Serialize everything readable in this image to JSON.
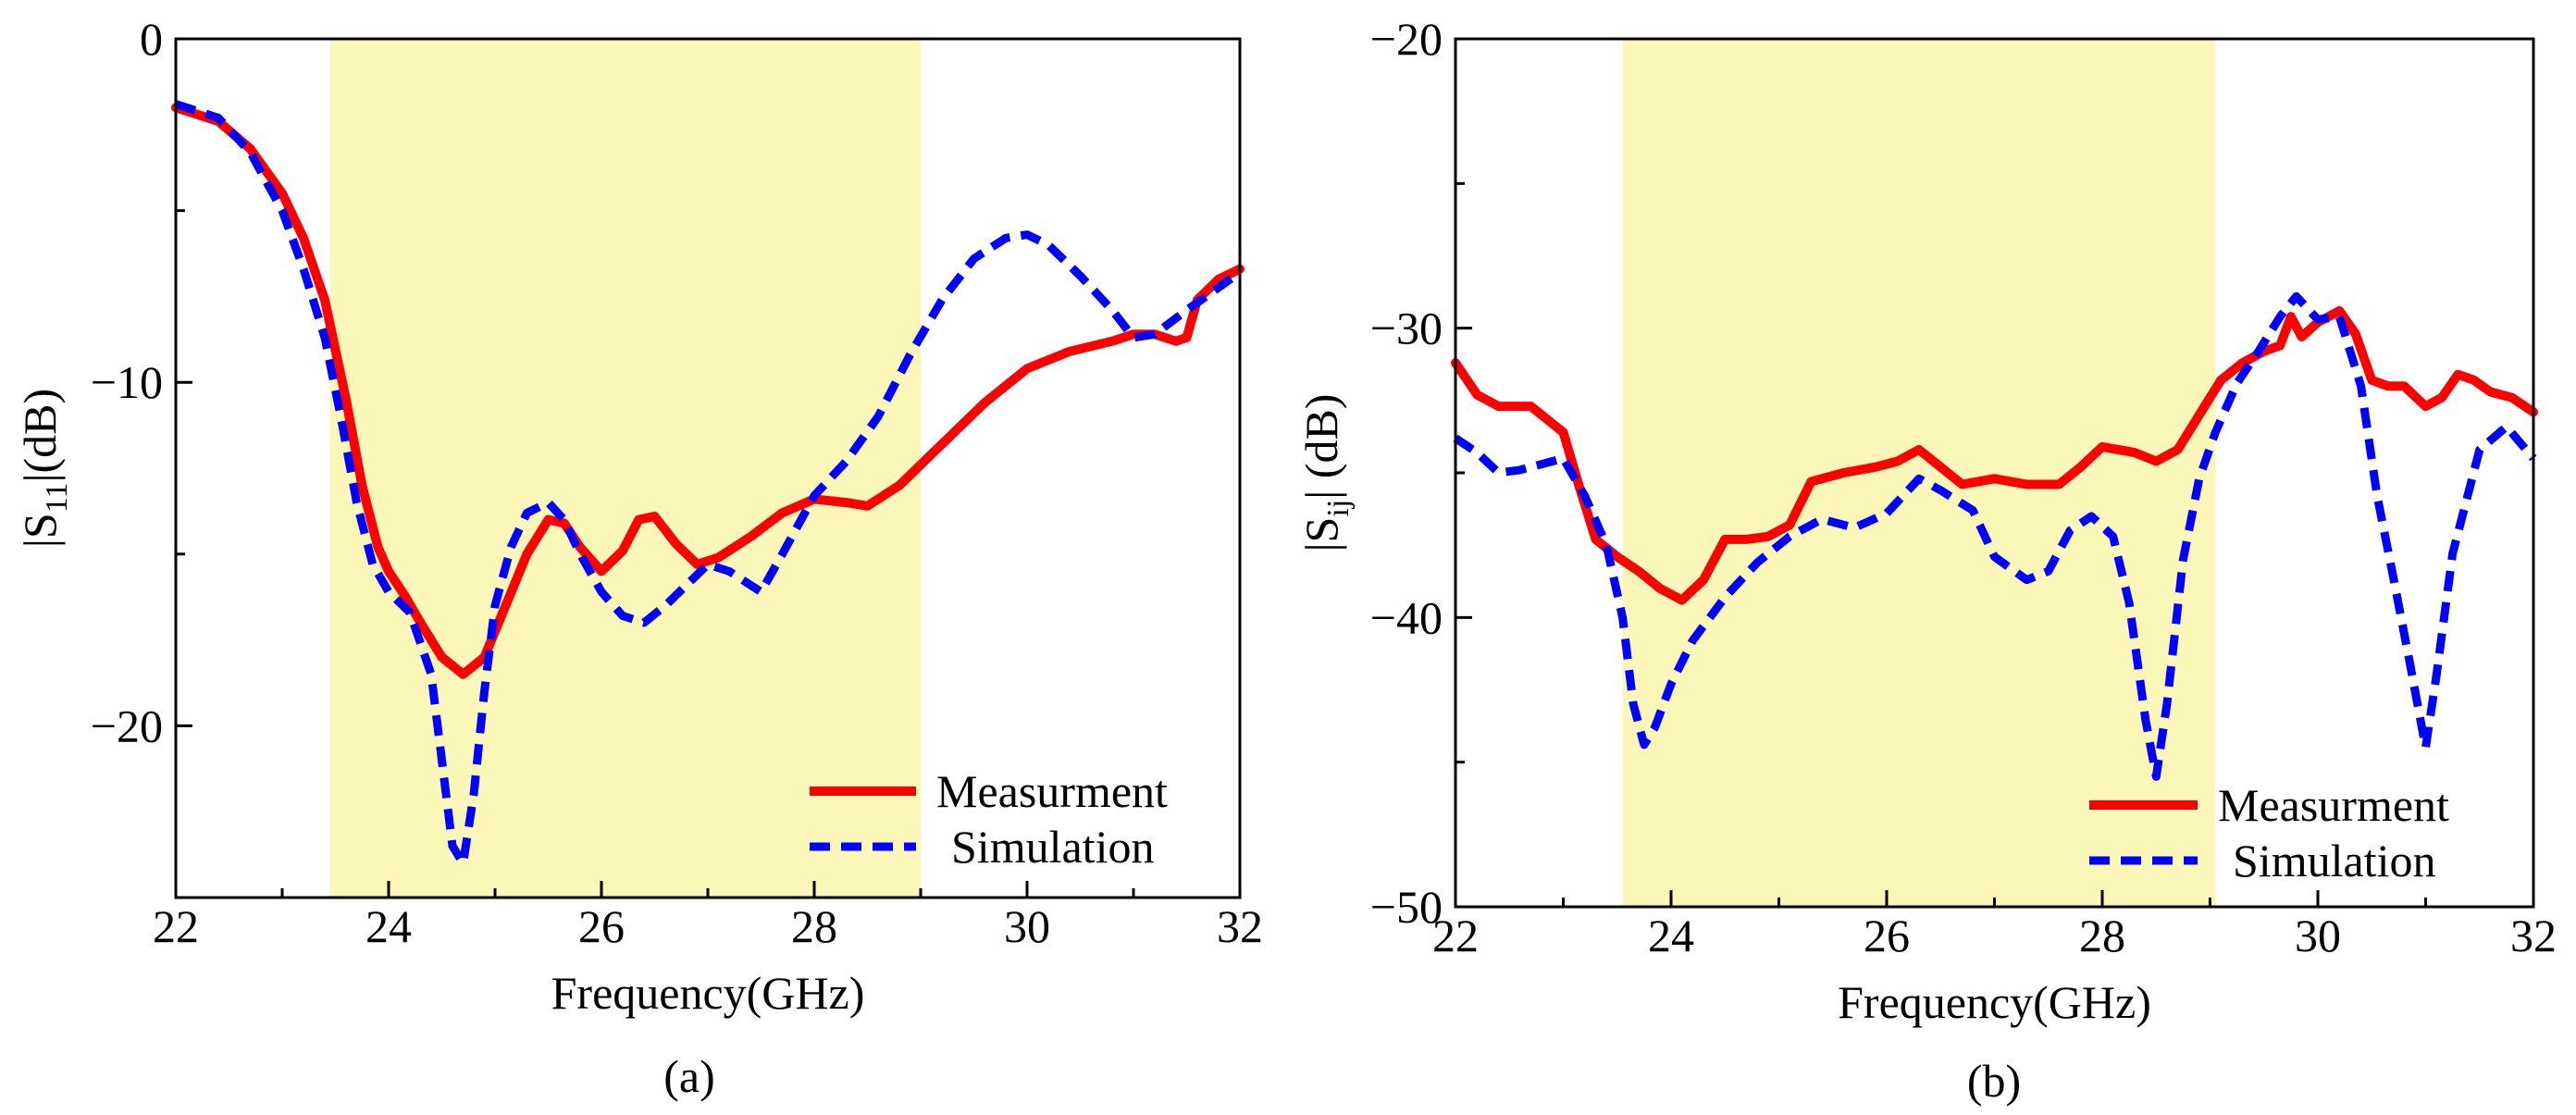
{
  "chart_data": [
    {
      "id": "a",
      "type": "line",
      "caption": "(a)",
      "xlabel": "Frequency(GHz)",
      "ylabel_parts": {
        "base": "|S",
        "sub": "11",
        "tail": "|(dB)"
      },
      "xlim": [
        22,
        32
      ],
      "ylim": [
        -25,
        0
      ],
      "xticks": [
        22,
        24,
        26,
        28,
        30,
        32
      ],
      "xtick_labels": [
        "22",
        "24",
        "26",
        "28",
        "30",
        "32"
      ],
      "yticks": [
        0,
        -10,
        -20
      ],
      "ytick_labels": [
        "0",
        "−10",
        "−20"
      ],
      "band": [
        23.45,
        29.0
      ],
      "band_color": "#fbf7b8",
      "legend_position": "bottom-right",
      "series": [
        {
          "name": "Measurment",
          "color": "#ff0000",
          "style": "solid",
          "x": [
            22,
            22.4,
            22.7,
            23.0,
            23.2,
            23.4,
            23.6,
            23.75,
            23.9,
            24.0,
            24.15,
            24.3,
            24.5,
            24.7,
            24.9,
            25.1,
            25.3,
            25.5,
            25.65,
            25.8,
            26.0,
            26.2,
            26.35,
            26.5,
            26.7,
            26.9,
            27.1,
            27.4,
            27.7,
            28.0,
            28.3,
            28.5,
            28.8,
            29.2,
            29.6,
            30.0,
            30.4,
            30.8,
            31.0,
            31.2,
            31.4,
            31.5,
            31.6,
            31.8,
            32.0
          ],
          "y": [
            -2.0,
            -2.4,
            -3.2,
            -4.5,
            -5.8,
            -7.6,
            -10.5,
            -13.0,
            -14.8,
            -15.5,
            -16.2,
            -17.0,
            -18.0,
            -18.5,
            -18.0,
            -16.5,
            -15.0,
            -14.0,
            -14.1,
            -14.8,
            -15.5,
            -14.9,
            -14.0,
            -13.9,
            -14.7,
            -15.3,
            -15.1,
            -14.5,
            -13.8,
            -13.4,
            -13.5,
            -13.6,
            -13.0,
            -11.8,
            -10.6,
            -9.6,
            -9.1,
            -8.8,
            -8.6,
            -8.6,
            -8.8,
            -8.7,
            -7.6,
            -7.0,
            -6.7
          ]
        },
        {
          "name": "Simulation",
          "color": "#0000ff",
          "style": "dashed",
          "x": [
            22,
            22.4,
            22.7,
            23.0,
            23.2,
            23.4,
            23.55,
            23.7,
            23.85,
            24.0,
            24.2,
            24.4,
            24.5,
            24.6,
            24.7,
            24.8,
            24.9,
            25.0,
            25.15,
            25.3,
            25.5,
            25.65,
            25.8,
            26.0,
            26.2,
            26.4,
            26.6,
            26.8,
            27.0,
            27.2,
            27.5,
            27.7,
            28.0,
            28.3,
            28.6,
            28.9,
            29.2,
            29.5,
            29.8,
            30.0,
            30.2,
            30.5,
            30.8,
            31.0,
            31.2,
            31.5,
            32.0
          ],
          "y": [
            -1.9,
            -2.3,
            -3.3,
            -5.0,
            -6.7,
            -8.7,
            -11.0,
            -13.5,
            -15.3,
            -16.1,
            -16.7,
            -18.5,
            -21.0,
            -23.5,
            -24.0,
            -22.0,
            -19.0,
            -16.5,
            -14.8,
            -13.8,
            -13.5,
            -14.0,
            -15.0,
            -16.1,
            -16.8,
            -17.0,
            -16.5,
            -15.9,
            -15.3,
            -15.5,
            -16.1,
            -15.0,
            -13.3,
            -12.3,
            -11.0,
            -9.2,
            -7.6,
            -6.4,
            -5.8,
            -5.7,
            -6.0,
            -6.9,
            -7.9,
            -8.7,
            -8.6,
            -7.9,
            -6.8
          ]
        }
      ]
    },
    {
      "id": "b",
      "type": "line",
      "caption": "(b)",
      "xlabel": "Frequency(GHz)",
      "ylabel_parts": {
        "base": "|S",
        "sub": "ij",
        "tail": "| (dB)"
      },
      "xlim": [
        22,
        32
      ],
      "ylim": [
        -50,
        -20
      ],
      "xticks": [
        22,
        24,
        26,
        28,
        30,
        32
      ],
      "xtick_labels": [
        "22",
        "24",
        "26",
        "28",
        "30",
        "32"
      ],
      "yticks": [
        -20,
        -30,
        -40,
        -50
      ],
      "ytick_labels": [
        "−20",
        "−30",
        "−40",
        "−50"
      ],
      "band": [
        23.55,
        29.05
      ],
      "band_color": "#fbf7b8",
      "legend_position": "bottom-right",
      "series": [
        {
          "name": "Measurment",
          "color": "#ff0000",
          "style": "solid",
          "x": [
            22,
            22.2,
            22.4,
            22.7,
            23.0,
            23.15,
            23.3,
            23.5,
            23.7,
            23.9,
            24.1,
            24.3,
            24.5,
            24.7,
            24.9,
            25.1,
            25.3,
            25.6,
            25.9,
            26.1,
            26.3,
            26.5,
            26.7,
            27.0,
            27.3,
            27.6,
            27.8,
            28.0,
            28.3,
            28.5,
            28.7,
            28.9,
            29.1,
            29.3,
            29.5,
            29.65,
            29.75,
            29.85,
            30.0,
            30.2,
            30.35,
            30.5,
            30.65,
            30.8,
            31.0,
            31.15,
            31.3,
            31.45,
            31.6,
            31.8,
            32.0
          ],
          "y": [
            -31.2,
            -32.3,
            -32.7,
            -32.7,
            -33.6,
            -35.5,
            -37.3,
            -37.9,
            -38.4,
            -39.0,
            -39.4,
            -38.7,
            -37.3,
            -37.3,
            -37.2,
            -36.8,
            -35.3,
            -35.0,
            -34.8,
            -34.6,
            -34.2,
            -34.8,
            -35.4,
            -35.2,
            -35.4,
            -35.4,
            -34.8,
            -34.1,
            -34.3,
            -34.6,
            -34.2,
            -33.0,
            -31.8,
            -31.2,
            -30.8,
            -30.6,
            -29.6,
            -30.3,
            -29.8,
            -29.4,
            -30.2,
            -31.8,
            -32.0,
            -32.0,
            -32.7,
            -32.4,
            -31.6,
            -31.8,
            -32.2,
            -32.4,
            -32.9
          ]
        },
        {
          "name": "Simulation",
          "color": "#0000ff",
          "style": "dashed",
          "x": [
            22,
            22.2,
            22.4,
            22.6,
            22.8,
            23.0,
            23.2,
            23.4,
            23.55,
            23.65,
            23.75,
            23.85,
            24.0,
            24.2,
            24.5,
            24.8,
            25.1,
            25.4,
            25.7,
            26.0,
            26.3,
            26.5,
            26.8,
            27.0,
            27.3,
            27.5,
            27.7,
            27.9,
            28.1,
            28.25,
            28.4,
            28.5,
            28.6,
            28.75,
            28.9,
            29.05,
            29.25,
            29.45,
            29.65,
            29.8,
            30.0,
            30.2,
            30.4,
            30.55,
            30.7,
            30.85,
            31.0,
            31.1,
            31.25,
            31.5,
            31.75,
            32.0
          ],
          "y": [
            -33.8,
            -34.3,
            -35.0,
            -34.9,
            -34.7,
            -34.5,
            -35.8,
            -37.5,
            -40.0,
            -43.0,
            -44.4,
            -43.8,
            -42.3,
            -40.8,
            -39.3,
            -38.1,
            -37.2,
            -36.6,
            -36.9,
            -36.4,
            -35.2,
            -35.6,
            -36.3,
            -37.9,
            -38.7,
            -38.4,
            -37.0,
            -36.5,
            -37.2,
            -39.5,
            -43.5,
            -45.5,
            -43.0,
            -38.0,
            -35.2,
            -33.6,
            -31.9,
            -30.8,
            -29.6,
            -28.9,
            -29.7,
            -29.6,
            -32.0,
            -35.8,
            -38.6,
            -41.5,
            -44.5,
            -42.0,
            -37.8,
            -34.2,
            -33.4,
            -34.5
          ]
        }
      ]
    }
  ]
}
